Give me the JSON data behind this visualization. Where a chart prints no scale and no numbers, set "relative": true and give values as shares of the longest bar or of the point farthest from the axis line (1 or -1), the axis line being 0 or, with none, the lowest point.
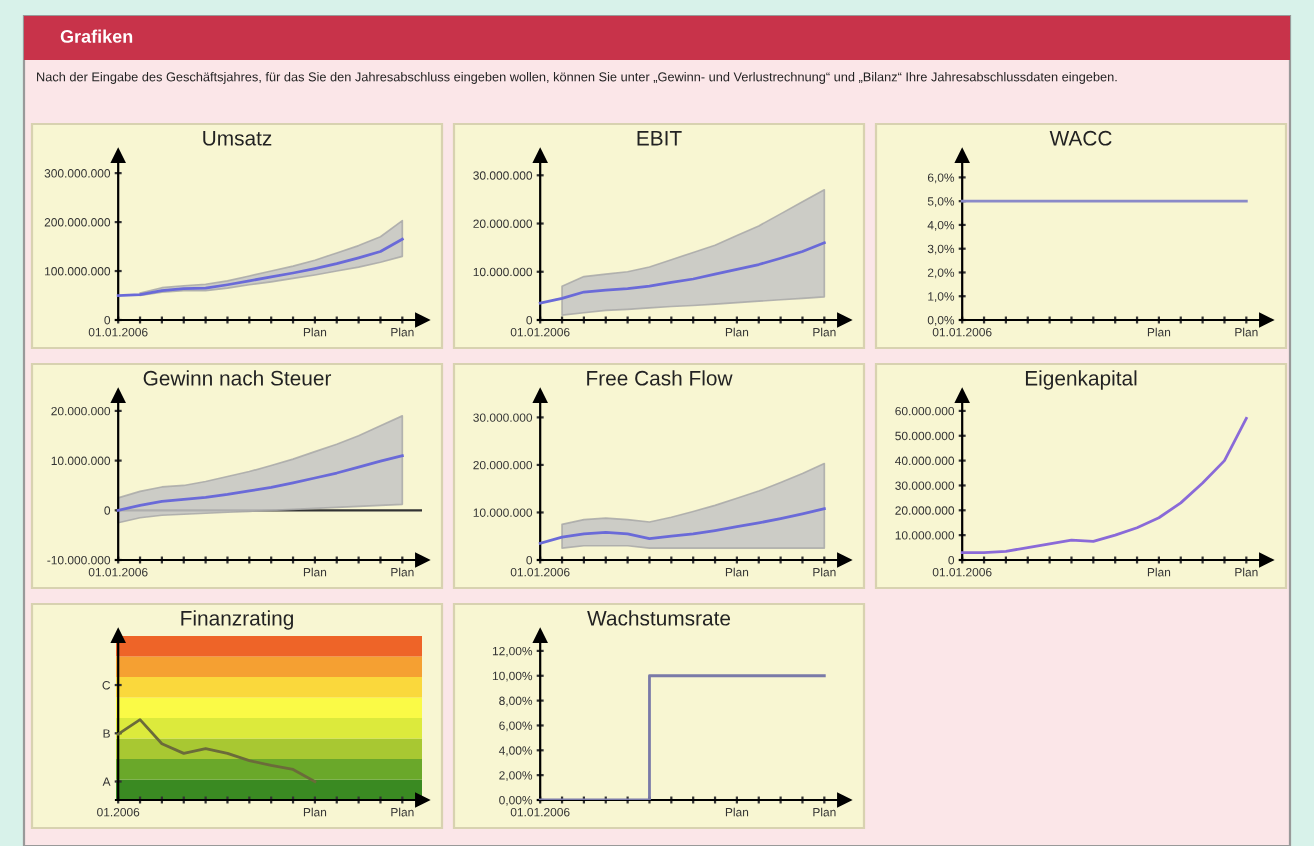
{
  "chart_data": [
    {
      "type": "other",
      "title": "Grafiken",
      "annotations": [
        "Nach der Eingabe des Geschäftsjahres, für das Sie den Jahresabschluss eingeben wollen, können Sie unter „Gewinn- und Verlustrechnung“ und „Bilanz“ Ihre Jahresabschlussdaten eingeben."
      ]
    },
    {
      "type": "line",
      "title": "Umsatz",
      "categories": [
        "01.01.2006",
        null,
        null,
        null,
        null,
        null,
        null,
        null,
        null,
        "Plan",
        null,
        null,
        null,
        "Plan"
      ],
      "ylim": [
        0,
        335000000
      ],
      "yticks": [
        {
          "value": 0,
          "label": "0"
        },
        {
          "value": 100000000,
          "label": "100.000.000"
        },
        {
          "value": 200000000,
          "label": "200.000.000"
        },
        {
          "value": 300000000,
          "label": "300.000.000"
        }
      ],
      "series": [
        {
          "color": "#6a6ad8",
          "values": [
            50000000,
            52000000,
            60000000,
            64000000,
            65000000,
            72000000,
            80000000,
            88000000,
            96000000,
            105000000,
            115000000,
            127000000,
            140000000,
            165000000
          ],
          "lower": [
            null,
            50000000,
            57000000,
            60000000,
            60000000,
            65000000,
            72000000,
            78000000,
            85000000,
            92000000,
            100000000,
            108000000,
            118000000,
            130000000
          ],
          "upper": [
            null,
            55000000,
            66000000,
            70000000,
            73000000,
            80000000,
            90000000,
            100000000,
            110000000,
            122000000,
            137000000,
            152000000,
            170000000,
            203000000
          ]
        }
      ]
    },
    {
      "type": "line",
      "title": "EBIT",
      "categories": [
        "01.01.2006",
        null,
        null,
        null,
        null,
        null,
        null,
        null,
        null,
        "Plan",
        null,
        null,
        null,
        "Plan"
      ],
      "ylim": [
        0,
        34000000
      ],
      "yticks": [
        {
          "value": 0,
          "label": "0"
        },
        {
          "value": 10000000,
          "label": "10.000.000"
        },
        {
          "value": 20000000,
          "label": "20.000.000"
        },
        {
          "value": 30000000,
          "label": "30.000.000"
        }
      ],
      "series": [
        {
          "color": "#6a6ad8",
          "values": [
            3500000,
            4500000,
            5800000,
            6200000,
            6500000,
            7000000,
            7800000,
            8500000,
            9500000,
            10500000,
            11500000,
            12800000,
            14200000,
            16000000
          ],
          "lower": [
            null,
            1000000,
            1500000,
            2000000,
            2200000,
            2500000,
            2800000,
            3000000,
            3300000,
            3600000,
            3900000,
            4200000,
            4500000,
            4800000
          ],
          "upper": [
            null,
            7000000,
            9000000,
            9500000,
            10000000,
            11000000,
            12500000,
            14000000,
            15500000,
            17500000,
            19500000,
            22000000,
            24500000,
            27000000
          ]
        }
      ]
    },
    {
      "type": "line",
      "title": "WACC",
      "categories": [
        "01.01.2006",
        null,
        null,
        null,
        null,
        null,
        null,
        null,
        null,
        "Plan",
        null,
        null,
        null,
        "Plan"
      ],
      "ylim": [
        0,
        6.9
      ],
      "yticks": [
        {
          "value": 0,
          "label": "0,0%"
        },
        {
          "value": 1,
          "label": "1,0%"
        },
        {
          "value": 2,
          "label": "2,0%"
        },
        {
          "value": 3,
          "label": "3,0%"
        },
        {
          "value": 4,
          "label": "4,0%"
        },
        {
          "value": 5,
          "label": "5,0%"
        },
        {
          "value": 6,
          "label": "6,0%"
        }
      ],
      "series": [
        {
          "color": "#8a8ac8",
          "values": [
            5.0,
            5.0,
            5.0,
            5.0,
            5.0,
            5.0,
            5.0,
            5.0,
            5.0,
            5.0,
            5.0,
            5.0,
            5.0,
            5.0
          ]
        }
      ]
    },
    {
      "type": "line",
      "title": "Gewinn nach Steuer",
      "categories": [
        "01.01.2006",
        null,
        null,
        null,
        null,
        null,
        null,
        null,
        null,
        "Plan",
        null,
        null,
        null,
        "Plan"
      ],
      "ylim": [
        -10000000,
        23000000
      ],
      "yticks": [
        {
          "value": -10000000,
          "label": "-10.000.000"
        },
        {
          "value": 0,
          "label": "0"
        },
        {
          "value": 10000000,
          "label": "10.000.000"
        },
        {
          "value": 20000000,
          "label": "20.000.000"
        }
      ],
      "ref_lines": [
        {
          "axis": "y",
          "value": 0,
          "color": "#333333"
        }
      ],
      "series": [
        {
          "color": "#6a6ad8",
          "values": [
            0,
            1000000,
            1800000,
            2200000,
            2600000,
            3200000,
            3900000,
            4600000,
            5500000,
            6500000,
            7500000,
            8700000,
            9900000,
            11000000
          ],
          "lower": [
            -2500000,
            -1500000,
            -1000000,
            -800000,
            -600000,
            -400000,
            -200000,
            0,
            200000,
            400000,
            600000,
            800000,
            1000000,
            1200000
          ],
          "upper": [
            2500000,
            3800000,
            4700000,
            5000000,
            5800000,
            6800000,
            7800000,
            9000000,
            10300000,
            11800000,
            13300000,
            15000000,
            17000000,
            19000000
          ]
        }
      ]
    },
    {
      "type": "line",
      "title": "Free Cash Flow",
      "categories": [
        "01.01.2006",
        null,
        null,
        null,
        null,
        null,
        null,
        null,
        null,
        "Plan",
        null,
        null,
        null,
        "Plan"
      ],
      "ylim": [
        0,
        34500000
      ],
      "yticks": [
        {
          "value": 0,
          "label": "0"
        },
        {
          "value": 10000000,
          "label": "10.000.000"
        },
        {
          "value": 20000000,
          "label": "20.000.000"
        },
        {
          "value": 30000000,
          "label": "30.000.000"
        }
      ],
      "series": [
        {
          "color": "#6a6ad8",
          "values": [
            3500000,
            4800000,
            5500000,
            5800000,
            5500000,
            4500000,
            5000000,
            5500000,
            6200000,
            7000000,
            7800000,
            8700000,
            9700000,
            10800000
          ],
          "lower": [
            null,
            2500000,
            3000000,
            3000000,
            3000000,
            2500000,
            2500000,
            2500000,
            2500000,
            2500000,
            2500000,
            2500000,
            2500000,
            2500000
          ],
          "upper": [
            null,
            7500000,
            8500000,
            8800000,
            8500000,
            8000000,
            9000000,
            10200000,
            11500000,
            13000000,
            14500000,
            16300000,
            18200000,
            20300000
          ]
        }
      ]
    },
    {
      "type": "line",
      "title": "Eigenkapital",
      "categories": [
        "01.01.2006",
        null,
        null,
        null,
        null,
        null,
        null,
        null,
        null,
        "Plan",
        null,
        null,
        null,
        "Plan"
      ],
      "ylim": [
        0,
        66000000
      ],
      "yticks": [
        {
          "value": 0,
          "label": "0"
        },
        {
          "value": 10000000,
          "label": "10.000.000"
        },
        {
          "value": 20000000,
          "label": "20.000.000"
        },
        {
          "value": 30000000,
          "label": "30.000.000"
        },
        {
          "value": 40000000,
          "label": "40.000.000"
        },
        {
          "value": 50000000,
          "label": "50.000.000"
        },
        {
          "value": 60000000,
          "label": "60.000.000"
        }
      ],
      "series": [
        {
          "color": "#8a6ad8",
          "values": [
            3000000,
            3000000,
            3500000,
            5000000,
            6500000,
            8000000,
            7500000,
            10000000,
            13000000,
            17000000,
            23000000,
            31000000,
            40000000,
            57000000
          ]
        }
      ]
    },
    {
      "type": "line",
      "title": "Finanzrating",
      "relative": true,
      "categories": [
        "01.2006",
        null,
        null,
        null,
        null,
        null,
        null,
        null,
        null,
        "Plan",
        null,
        null,
        null,
        "Plan"
      ],
      "annotations": [
        "A",
        "B",
        "C"
      ],
      "series": [
        {
          "color": "#6b6b3a",
          "values": [
            0.82,
            1,
            0.7,
            0.58,
            0.64,
            0.58,
            0.49,
            0.43,
            0.38,
            0.23,
            null,
            null,
            null,
            null
          ]
        }
      ]
    },
    {
      "type": "step",
      "title": "Wachstumsrate",
      "categories": [
        "01.01.2006",
        null,
        null,
        null,
        null,
        null,
        null,
        null,
        null,
        "Plan",
        null,
        null,
        null,
        "Plan"
      ],
      "ylim": [
        0,
        13.2
      ],
      "yticks": [
        {
          "value": 0,
          "label": "0,00%"
        },
        {
          "value": 2,
          "label": "2,00%"
        },
        {
          "value": 4,
          "label": "4,00%"
        },
        {
          "value": 6,
          "label": "6,00%"
        },
        {
          "value": 8,
          "label": "8,00%"
        },
        {
          "value": 10,
          "label": "10,00%"
        },
        {
          "value": 12,
          "label": "12,00%"
        }
      ],
      "series": [
        {
          "color": "#7a7aa8",
          "values": [
            0,
            0,
            0,
            0,
            0,
            10,
            10,
            10,
            10,
            10,
            10,
            10,
            10,
            10
          ]
        }
      ]
    }
  ]
}
